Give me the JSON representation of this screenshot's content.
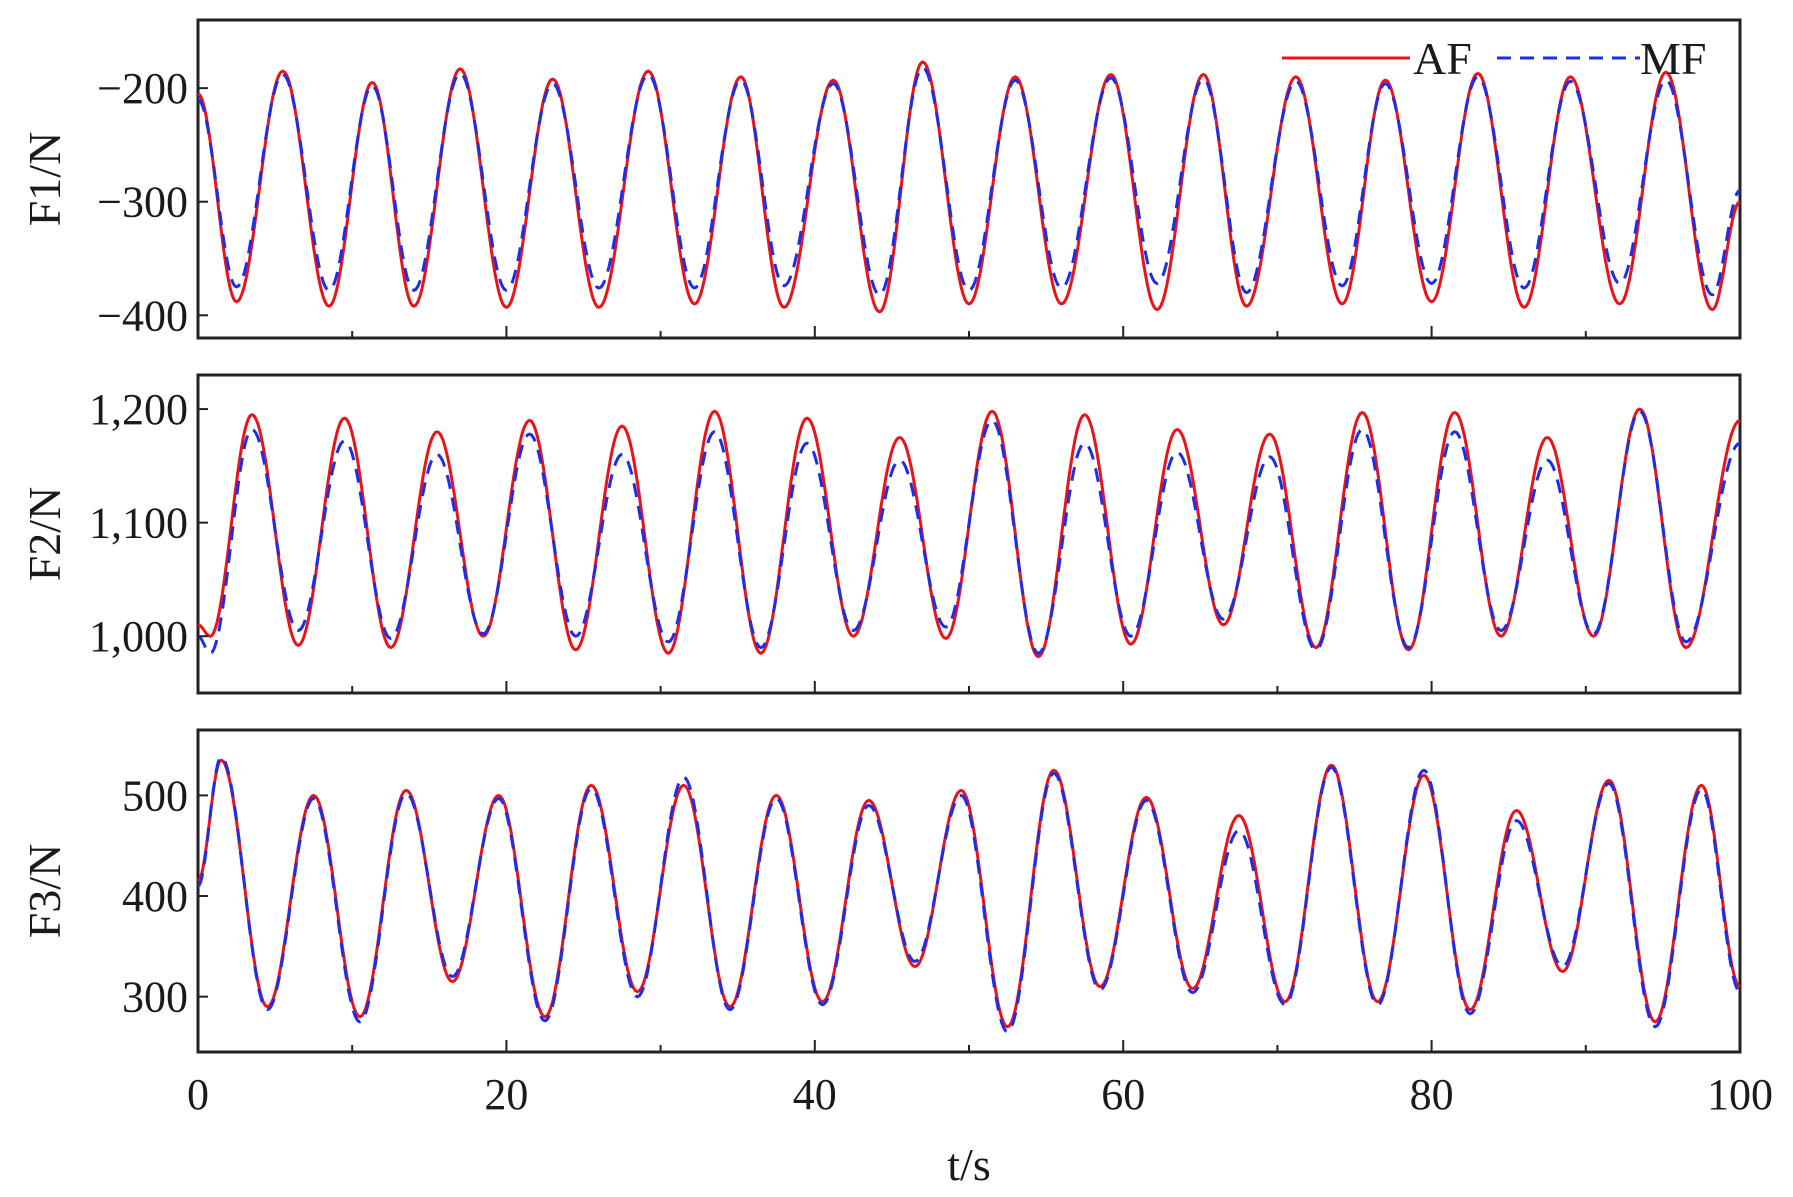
{
  "chart_data": [
    {
      "type": "line",
      "ylabel": "F1/N",
      "xlim": [
        0,
        100
      ],
      "ylim": [
        -420,
        -140
      ],
      "yticks": [
        -200,
        -300,
        -400
      ],
      "yticklabels": [
        "−200",
        "−300",
        "−400"
      ],
      "legend": {
        "position": "top-right",
        "entries": [
          "AF",
          "MF"
        ]
      },
      "series": [
        {
          "name": "AF",
          "color": "#e8141c",
          "style": "solid",
          "x": [
            0,
            2.5,
            5.5,
            8.5,
            11.3,
            14.0,
            17.0,
            20.0,
            23.0,
            26.0,
            29.2,
            32.2,
            35.2,
            38.0,
            41.2,
            44.2,
            47.0,
            50.0,
            53.0,
            56.0,
            59.2,
            62.2,
            65.2,
            68.0,
            71.2,
            74.2,
            77.0,
            80.0,
            83.0,
            86.0,
            89.0,
            92.2,
            95.2,
            98.2,
            100
          ],
          "y": [
            -205,
            -388,
            -185,
            -392,
            -195,
            -392,
            -183,
            -393,
            -192,
            -393,
            -185,
            -390,
            -190,
            -393,
            -193,
            -397,
            -177,
            -390,
            -190,
            -390,
            -188,
            -395,
            -188,
            -392,
            -190,
            -390,
            -193,
            -388,
            -187,
            -393,
            -190,
            -390,
            -186,
            -395,
            -300
          ]
        },
        {
          "name": "MF",
          "color": "#1e2ee8",
          "style": "dashed",
          "x": [
            0,
            2.5,
            5.5,
            8.5,
            11.3,
            14.0,
            17.0,
            20.0,
            23.0,
            26.0,
            29.2,
            32.2,
            35.2,
            38.0,
            41.2,
            44.2,
            47.0,
            50.0,
            53.0,
            56.0,
            59.2,
            62.2,
            65.2,
            68.0,
            71.2,
            74.2,
            77.0,
            80.0,
            83.0,
            86.0,
            89.0,
            92.2,
            95.2,
            98.2,
            100
          ],
          "y": [
            -210,
            -375,
            -188,
            -378,
            -198,
            -378,
            -187,
            -378,
            -196,
            -376,
            -188,
            -376,
            -193,
            -374,
            -196,
            -382,
            -182,
            -378,
            -193,
            -376,
            -191,
            -372,
            -192,
            -380,
            -194,
            -374,
            -196,
            -372,
            -190,
            -376,
            -194,
            -372,
            -193,
            -382,
            -290
          ]
        }
      ]
    },
    {
      "type": "line",
      "ylabel": "F2/N",
      "xlim": [
        0,
        100
      ],
      "ylim": [
        950,
        1230
      ],
      "yticks": [
        1000,
        1100,
        1200
      ],
      "yticklabels": [
        "1,000",
        "1,100",
        "1,200"
      ],
      "series": [
        {
          "name": "AF",
          "color": "#e8141c",
          "style": "solid",
          "x": [
            0,
            0.8,
            3.5,
            6.5,
            9.5,
            12.5,
            15.5,
            18.5,
            21.5,
            24.5,
            27.5,
            30.5,
            33.5,
            36.5,
            39.5,
            42.5,
            45.5,
            48.5,
            51.5,
            54.5,
            57.5,
            60.5,
            63.5,
            66.5,
            69.5,
            72.5,
            75.5,
            78.5,
            81.5,
            84.5,
            87.5,
            90.5,
            93.5,
            96.5,
            100
          ],
          "y": [
            1010,
            1000,
            1195,
            992,
            1192,
            990,
            1180,
            1000,
            1190,
            988,
            1185,
            985,
            1198,
            985,
            1192,
            1000,
            1175,
            998,
            1198,
            982,
            1195,
            993,
            1182,
            1010,
            1178,
            990,
            1197,
            988,
            1197,
            1000,
            1175,
            1000,
            1200,
            990,
            1190
          ]
        },
        {
          "name": "MF",
          "color": "#1e2ee8",
          "style": "dashed",
          "x": [
            0,
            0.8,
            3.5,
            6.5,
            9.5,
            12.5,
            15.5,
            18.5,
            21.5,
            24.5,
            27.5,
            30.5,
            33.5,
            36.5,
            39.5,
            42.5,
            45.5,
            48.5,
            51.5,
            54.5,
            57.5,
            60.5,
            63.5,
            66.5,
            69.5,
            72.5,
            75.5,
            78.5,
            81.5,
            84.5,
            87.5,
            90.5,
            93.5,
            96.5,
            100
          ],
          "y": [
            1000,
            985,
            1182,
            1005,
            1172,
            998,
            1160,
            1002,
            1178,
            1000,
            1160,
            995,
            1180,
            990,
            1170,
            1005,
            1155,
            1008,
            1190,
            985,
            1170,
            1000,
            1162,
            1015,
            1158,
            988,
            1182,
            990,
            1180,
            1005,
            1155,
            1002,
            1198,
            995,
            1170
          ]
        }
      ]
    },
    {
      "type": "line",
      "ylabel": "F3/N",
      "xlim": [
        0,
        100
      ],
      "ylim": [
        245,
        565
      ],
      "yticks": [
        300,
        400,
        500
      ],
      "yticklabels": [
        "300",
        "400",
        "500"
      ],
      "series": [
        {
          "name": "AF",
          "color": "#e8141c",
          "style": "solid",
          "x": [
            0,
            1.5,
            4.5,
            7.5,
            10.5,
            13.5,
            16.5,
            19.5,
            22.5,
            25.5,
            28.5,
            31.5,
            34.5,
            37.5,
            40.5,
            43.5,
            46.5,
            49.5,
            52.5,
            55.5,
            58.5,
            61.5,
            64.5,
            67.5,
            70.5,
            73.5,
            76.5,
            79.5,
            82.5,
            85.5,
            88.5,
            91.5,
            94.5,
            97.5,
            100
          ],
          "y": [
            415,
            535,
            290,
            500,
            280,
            505,
            315,
            500,
            280,
            510,
            305,
            510,
            290,
            500,
            295,
            495,
            330,
            505,
            270,
            525,
            310,
            498,
            308,
            480,
            295,
            530,
            295,
            520,
            287,
            485,
            325,
            515,
            275,
            510,
            310
          ]
        },
        {
          "name": "MF",
          "color": "#1e2ee8",
          "style": "dashed",
          "x": [
            0,
            1.5,
            4.5,
            7.5,
            10.5,
            13.5,
            16.5,
            19.5,
            22.5,
            25.5,
            28.5,
            31.5,
            34.5,
            37.5,
            40.5,
            43.5,
            46.5,
            49.5,
            52.5,
            55.5,
            58.5,
            61.5,
            64.5,
            67.5,
            70.5,
            73.5,
            76.5,
            79.5,
            82.5,
            85.5,
            88.5,
            91.5,
            94.5,
            97.5,
            100
          ],
          "y": [
            410,
            538,
            287,
            497,
            275,
            502,
            320,
            497,
            276,
            507,
            300,
            518,
            287,
            497,
            292,
            490,
            335,
            500,
            265,
            522,
            307,
            495,
            304,
            465,
            292,
            528,
            292,
            525,
            283,
            475,
            330,
            512,
            270,
            506,
            305
          ]
        }
      ]
    }
  ],
  "xaxis": {
    "label": "t/s",
    "ticks": [
      0,
      20,
      40,
      60,
      80,
      100
    ],
    "ticklabels": [
      "0",
      "20",
      "40",
      "60",
      "80",
      "100"
    ],
    "minor_ticks": [
      10,
      30,
      50,
      70,
      90
    ]
  },
  "legend": {
    "entries": [
      {
        "label": "AF",
        "color": "#e8141c",
        "style": "solid"
      },
      {
        "label": "MF",
        "color": "#1e2ee8",
        "style": "dashed"
      }
    ]
  }
}
